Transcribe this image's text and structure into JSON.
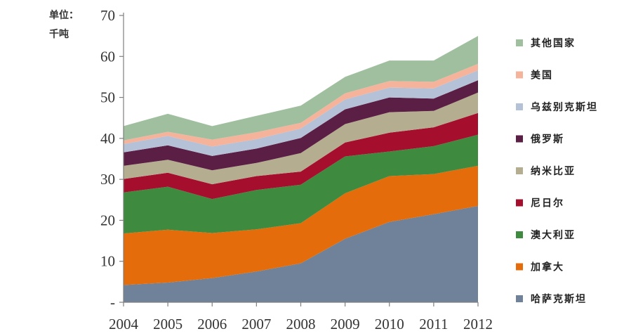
{
  "chart_data": {
    "type": "area",
    "stacked": true,
    "ylabel": "单位：\n千吨",
    "ylim": [
      0,
      70
    ],
    "yticks": [
      0,
      10,
      20,
      30,
      40,
      50,
      60,
      70
    ],
    "ytick_labels": [
      "-",
      "10",
      "20",
      "30",
      "40",
      "50",
      "60",
      "70"
    ],
    "x": [
      "2004",
      "2005",
      "2006",
      "2007",
      "2008",
      "2009",
      "2010",
      "2011",
      "2012"
    ],
    "grid": false,
    "legend_position": "right",
    "series": [
      {
        "name": "哈萨克斯坦",
        "color": "#6f829a",
        "values": [
          4.2,
          4.8,
          5.9,
          7.5,
          9.5,
          15.5,
          19.6,
          21.5,
          23.5
        ]
      },
      {
        "name": "加拿大",
        "color": "#e46c0a",
        "values": [
          12.6,
          12.9,
          11.0,
          10.3,
          9.8,
          11.1,
          11.2,
          9.8,
          9.8
        ]
      },
      {
        "name": "澳大利亚",
        "color": "#3e8a3e",
        "values": [
          10.0,
          10.5,
          8.3,
          9.6,
          9.4,
          9.0,
          6.0,
          6.8,
          7.6
        ]
      },
      {
        "name": "尼日尔",
        "color": "#a50e2d",
        "values": [
          3.3,
          3.4,
          3.6,
          3.4,
          3.2,
          3.4,
          4.6,
          4.6,
          5.3
        ]
      },
      {
        "name": "纳米比亚",
        "color": "#b4ad8f",
        "values": [
          3.2,
          3.2,
          3.4,
          3.2,
          4.5,
          4.5,
          5.0,
          4.0,
          5.0
        ]
      },
      {
        "name": "俄罗斯",
        "color": "#5b1e45",
        "values": [
          3.3,
          3.5,
          3.5,
          3.5,
          3.7,
          3.6,
          3.6,
          3.0,
          3.0
        ]
      },
      {
        "name": "乌兹别克斯坦",
        "color": "#b4c1d6",
        "values": [
          2.0,
          2.3,
          2.3,
          2.3,
          2.3,
          2.4,
          2.4,
          2.5,
          2.4
        ]
      },
      {
        "name": "美国",
        "color": "#f6b39c",
        "values": [
          0.9,
          1.0,
          1.7,
          1.7,
          1.4,
          1.5,
          1.6,
          1.6,
          1.6
        ]
      },
      {
        "name": "其他国家",
        "color": "#9fbf9f",
        "values": [
          3.5,
          4.4,
          3.3,
          4.0,
          4.2,
          4.0,
          5.0,
          5.2,
          6.8
        ]
      }
    ]
  }
}
